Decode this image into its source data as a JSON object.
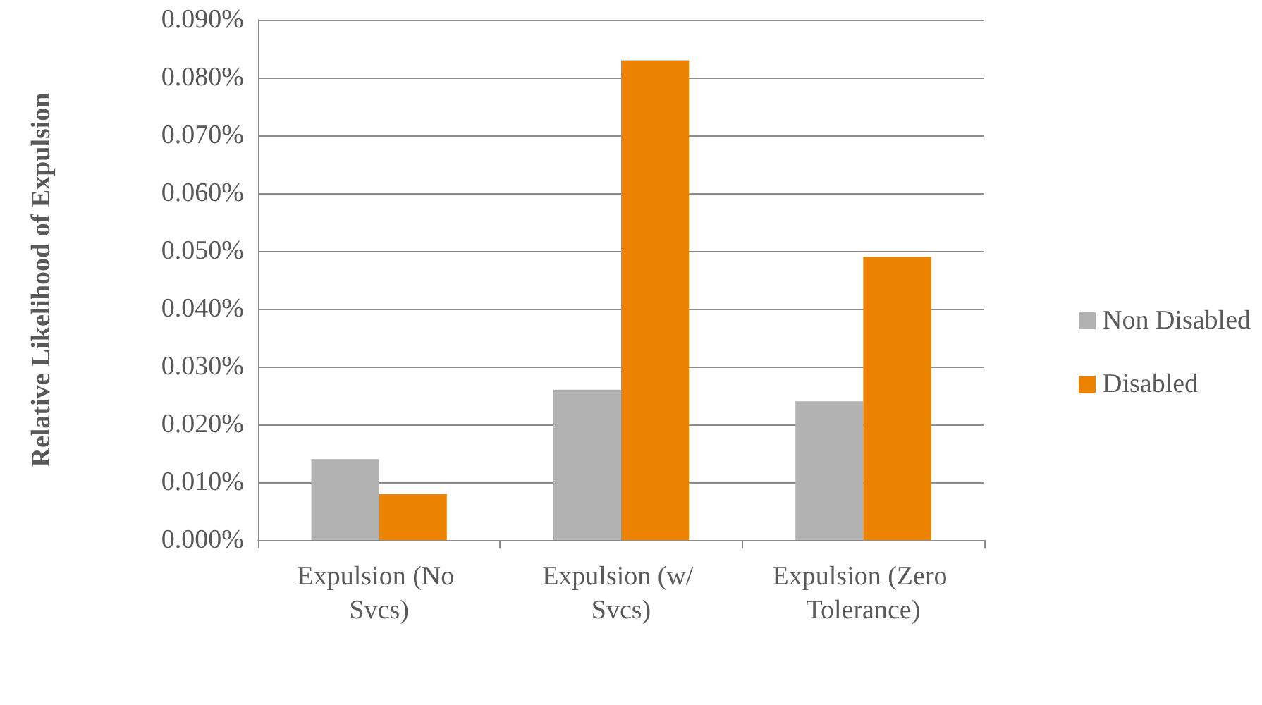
{
  "chart_data": {
    "type": "bar",
    "ylabel": "Relative Likelihood of Expulsion",
    "categories": [
      "Expulsion (No Svcs)",
      "Expulsion (w/ Svcs)",
      "Expulsion (Zero Tolerance)"
    ],
    "series": [
      {
        "name": "Non Disabled",
        "color": "#b2b2b2",
        "values": [
          0.014,
          0.026,
          0.024
        ]
      },
      {
        "name": "Disabled",
        "color": "#eb8200",
        "values": [
          0.008,
          0.083,
          0.049
        ]
      }
    ],
    "ylim": [
      0,
      0.09
    ],
    "yticks": [
      {
        "value": 0,
        "label": "0.000%"
      },
      {
        "value": 0.01,
        "label": "0.010%"
      },
      {
        "value": 0.02,
        "label": "0.020%"
      },
      {
        "value": 0.03,
        "label": "0.030%"
      },
      {
        "value": 0.04,
        "label": "0.040%"
      },
      {
        "value": 0.05,
        "label": "0.050%"
      },
      {
        "value": 0.06,
        "label": "0.060%"
      },
      {
        "value": 0.07,
        "label": "0.070%"
      },
      {
        "value": 0.08,
        "label": "0.080%"
      },
      {
        "value": 0.09,
        "label": "0.090%"
      }
    ],
    "grid": "y",
    "legend": "right"
  }
}
